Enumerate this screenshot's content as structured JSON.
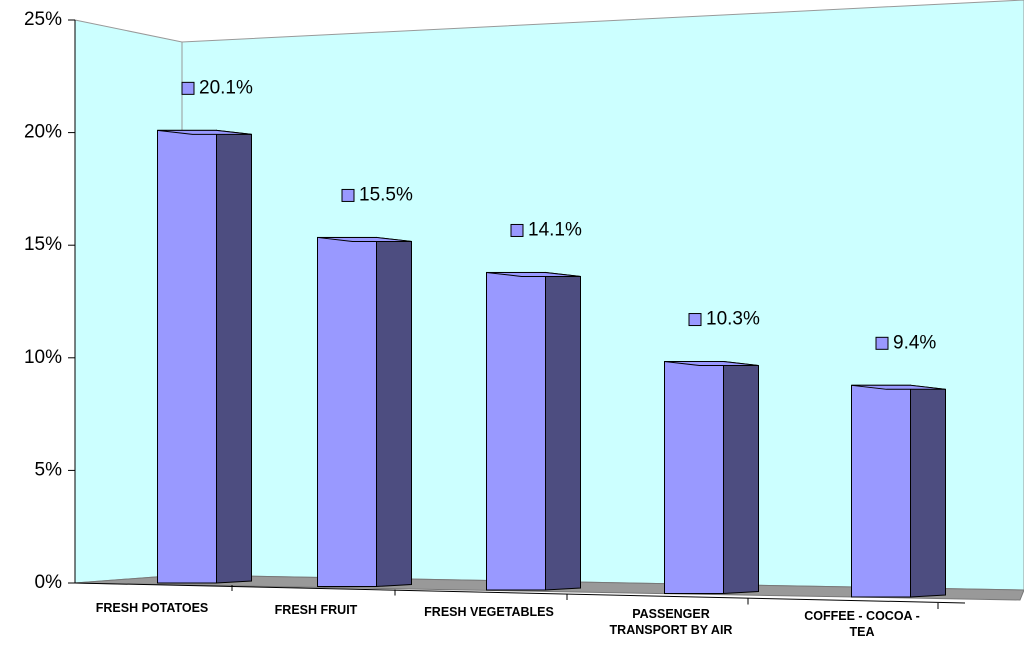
{
  "chart_data": {
    "type": "bar",
    "categories": [
      "FRESH POTATOES",
      "FRESH FRUIT",
      "FRESH VEGETABLES",
      "PASSENGER TRANSPORT BY AIR",
      "COFFEE - COCOA - TEA"
    ],
    "values": [
      20.1,
      15.5,
      14.1,
      10.3,
      9.4
    ],
    "value_labels": [
      "20.1%",
      "15.5%",
      "14.1%",
      "10.3%",
      "9.4%"
    ],
    "color": "#9999ff",
    "ylim": [
      0,
      25
    ],
    "yticks": [
      {
        "value": 0,
        "label": "0%"
      },
      {
        "value": 5,
        "label": "5%"
      },
      {
        "value": 10,
        "label": "10%"
      },
      {
        "value": 15,
        "label": "15%"
      },
      {
        "value": 20,
        "label": "20%"
      },
      {
        "value": 25,
        "label": "25%"
      }
    ]
  }
}
